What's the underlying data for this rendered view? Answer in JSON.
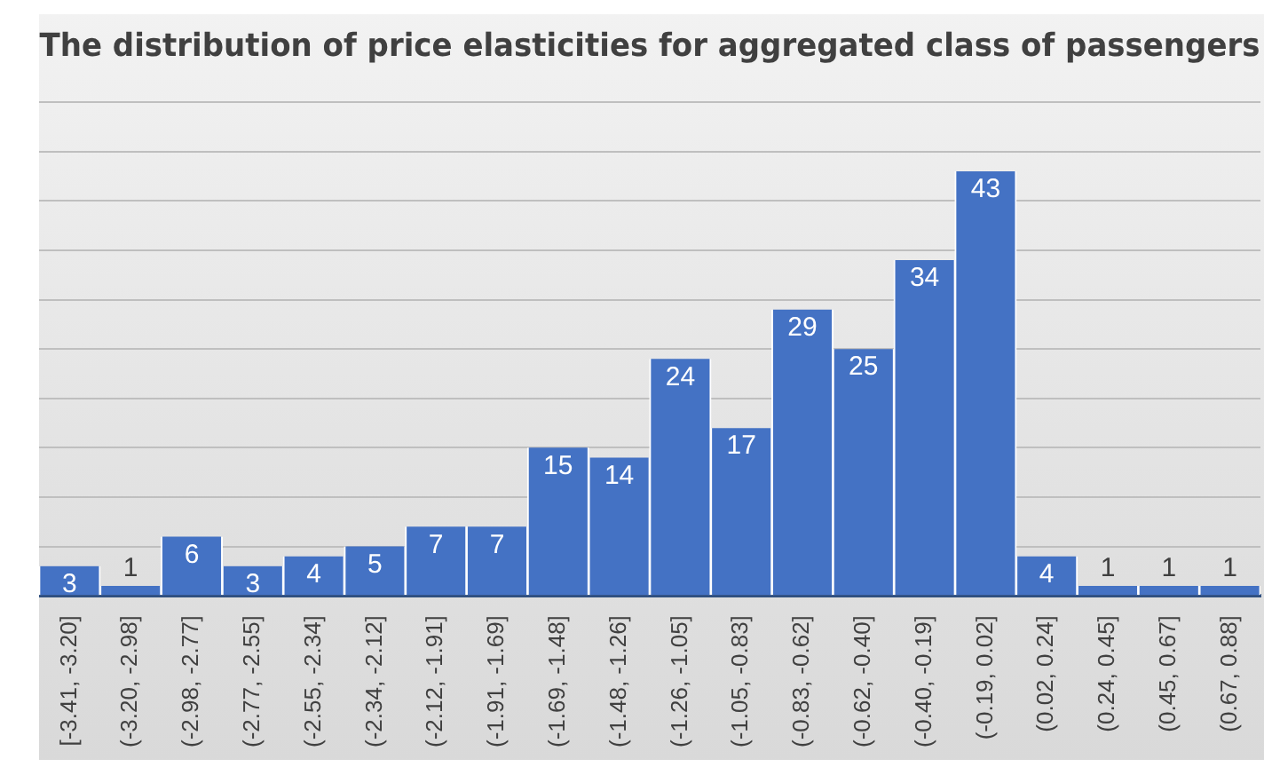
{
  "chart_data": {
    "type": "bar",
    "title": "The distribution of price elasticities for aggregated class of passengers",
    "categories": [
      "[-3.41, -3.20]",
      "(-3.20, -2.98]",
      "(-2.98, -2.77]",
      "(-2.77, -2.55]",
      "(-2.55, -2.34]",
      "(-2.34, -2.12]",
      "(-2.12, -1.91]",
      "(-1.91, -1.69]",
      "(-1.69, -1.48]",
      "(-1.48, -1.26]",
      "(-1.26, -1.05]",
      "(-1.05, -0.83]",
      "(-0.83, -0.62]",
      "(-0.62, -0.40]",
      "(-0.40, -0.19]",
      "(-0.19, 0.02]",
      "(0.02, 0.24]",
      "(0.24, 0.45]",
      "(0.45, 0.67]",
      "(0.67, 0.88]"
    ],
    "values": [
      3,
      1,
      6,
      3,
      4,
      5,
      7,
      7,
      15,
      14,
      24,
      17,
      29,
      25,
      34,
      43,
      4,
      1,
      1,
      1
    ],
    "color": "#4472c4",
    "ylim": [
      0,
      50
    ],
    "yticks": [
      {
        "value": 0,
        "label": null
      },
      {
        "value": 5,
        "label": null
      },
      {
        "value": 10,
        "label": null
      },
      {
        "value": 15,
        "label": null
      },
      {
        "value": 20,
        "label": null
      },
      {
        "value": 25,
        "label": null
      },
      {
        "value": 30,
        "label": null
      },
      {
        "value": 35,
        "label": null
      },
      {
        "value": 40,
        "label": null
      },
      {
        "value": 45,
        "label": null
      },
      {
        "value": 50,
        "label": null
      }
    ],
    "grid": "y",
    "tick_labels": "x",
    "data_labels": true,
    "legend": false
  }
}
